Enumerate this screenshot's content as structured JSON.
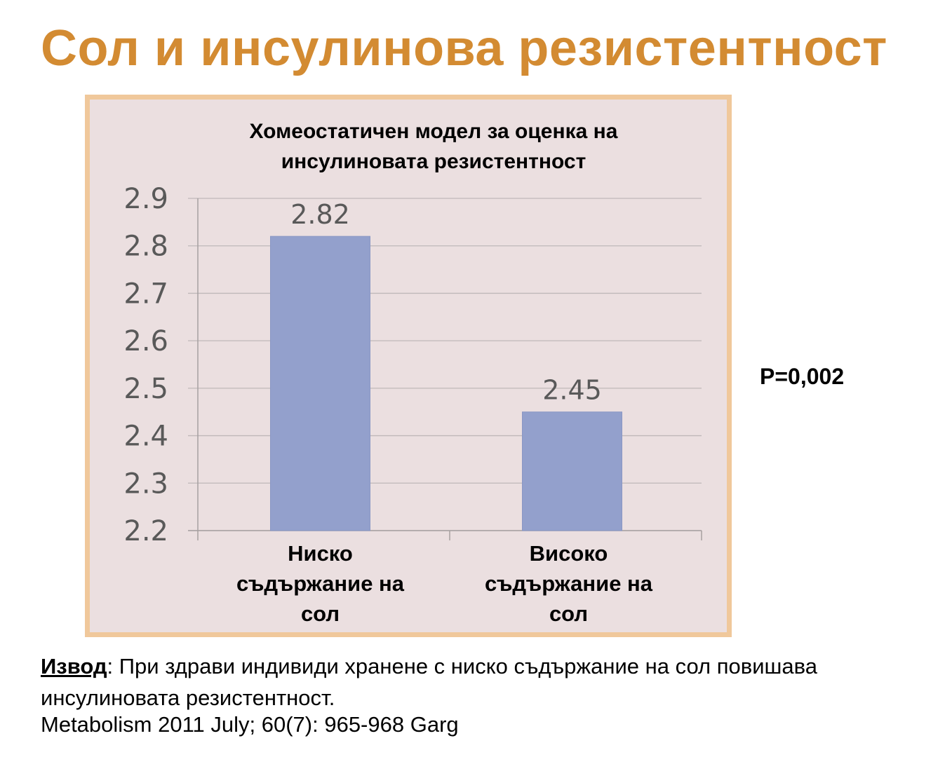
{
  "slide": {
    "title": "Сол и инсулинова резистентност",
    "p_value": "P=0,002",
    "conclusion_keyword": "Извод",
    "conclusion_text": ": При здрави индивиди хранене с ниско съдържание на сол повишава инсулиновата резистентност.",
    "citation": "Metabolism 2011 July; 60(7): 965-968 Garg"
  },
  "colors": {
    "title": "#d38b32",
    "frame_border": "#f0c89b",
    "plot_background": "#ebdfe0",
    "bar_fill": "#93a0cc"
  },
  "chart_data": {
    "type": "bar",
    "title_lines": [
      "Хомеостатичен модел за оценка на",
      "инсулиновата резистентност"
    ],
    "categories": [
      [
        "Ниско",
        "съдържание на",
        "сол"
      ],
      [
        "Високо",
        "съдържание на",
        "сол"
      ]
    ],
    "values": [
      2.82,
      2.45
    ],
    "data_labels": [
      "2.82",
      "2.45"
    ],
    "ylim": [
      2.2,
      2.9
    ],
    "yticks": [
      "2.2",
      "2.3",
      "2.4",
      "2.5",
      "2.6",
      "2.7",
      "2.8",
      "2.9"
    ],
    "grid": true,
    "legend": "none"
  }
}
